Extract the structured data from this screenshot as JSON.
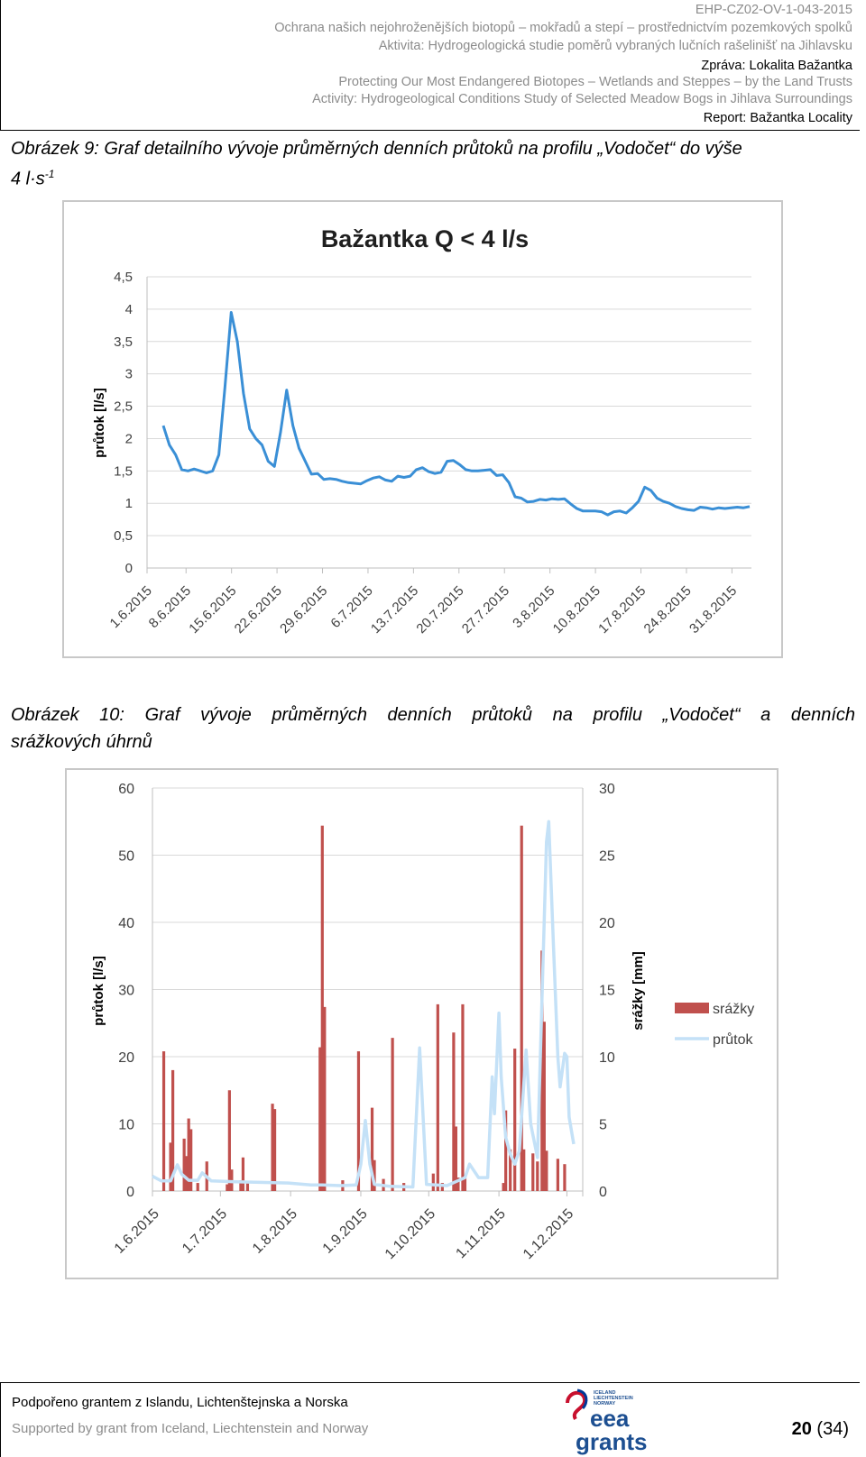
{
  "header": {
    "code": "EHP-CZ02-OV-1-043-2015",
    "line1_cz": "Ochrana našich nejohroženějších biotopů – mokřadů a stepí – prostřednictvím pozemkových spolků",
    "line2_cz": "Aktivita: Hydrogeologická studie poměrů vybraných lučních rašelinišť na Jihlavsku",
    "report_cz": "Zpráva: Lokalita Bažantka",
    "line1_en": "Protecting Our Most Endangered Biotopes – Wetlands and Steppes – by the Land Trusts",
    "line2_en": "Activity: Hydrogeological Conditions Study of Selected Meadow Bogs in Jihlava Surroundings",
    "report_en": "Report: Bažantka Locality"
  },
  "figure9": {
    "caption_main": "Obrázek 9: Graf detailního vývoje průměrných denních průtoků na profilu „Vodočet“ do výše",
    "caption_unit": "4 l·s",
    "caption_sup": "-1"
  },
  "figure10": {
    "caption_line1": "Obrázek 10: Graf vývoje průměrných denních průtoků na profilu „Vodočet“ a denních",
    "caption_line2": "srážkových úhrnů"
  },
  "colors": {
    "flow_line": "#3a8fd6",
    "flow_light": "#c4e1f7",
    "rain_bar": "#c0504d",
    "grid": "#d9d9d9"
  },
  "chart_data": [
    {
      "type": "line",
      "title": "Bažantka Q < 4 l/s",
      "xlabel": "",
      "ylabel": "průtok [l/s]",
      "ylim": [
        0,
        4.5
      ],
      "yticks": [
        "0",
        "0,5",
        "1",
        "1,5",
        "2",
        "2,5",
        "3",
        "3,5",
        "4",
        "4,5"
      ],
      "xticks": [
        "1.6.2015",
        "8.6.2015",
        "15.6.2015",
        "22.6.2015",
        "29.6.2015",
        "6.7.2015",
        "13.7.2015",
        "20.7.2015",
        "27.7.2015",
        "3.8.2015",
        "10.8.2015",
        "17.8.2015",
        "24.8.2015",
        "31.8.2015"
      ],
      "x_start": "2.6.2015",
      "series": [
        {
          "values": [
            2.2,
            1.9,
            1.75,
            1.52,
            1.5,
            1.53,
            1.5,
            1.47,
            1.5,
            1.75,
            2.8,
            3.95,
            3.5,
            2.7,
            2.15,
            2.0,
            1.9,
            1.65,
            1.57,
            2.1,
            2.75,
            2.2,
            1.85,
            1.65,
            1.45,
            1.46,
            1.37,
            1.38,
            1.37,
            1.34,
            1.32,
            1.31,
            1.3,
            1.35,
            1.39,
            1.41,
            1.36,
            1.34,
            1.42,
            1.4,
            1.42,
            1.52,
            1.55,
            1.49,
            1.46,
            1.48,
            1.65,
            1.66,
            1.6,
            1.52,
            1.5,
            1.5,
            1.51,
            1.52,
            1.43,
            1.44,
            1.32,
            1.1,
            1.08,
            1.02,
            1.03,
            1.06,
            1.05,
            1.07,
            1.06,
            1.07,
            0.99,
            0.92,
            0.88,
            0.88,
            0.88,
            0.87,
            0.82,
            0.87,
            0.88,
            0.85,
            0.93,
            1.03,
            1.25,
            1.2,
            1.08,
            1.03,
            1.0,
            0.95,
            0.92,
            0.9,
            0.89,
            0.94,
            0.93,
            0.91,
            0.93,
            0.92,
            0.93,
            0.94,
            0.93,
            0.95
          ]
        }
      ],
      "grid": true
    },
    {
      "type": "bar+line",
      "title": "",
      "ylabel_left": "průtok [l/s]",
      "ylabel_right": "srážky [mm]",
      "ylim_left": [
        0,
        60
      ],
      "ylim_right": [
        0,
        30
      ],
      "yticks_left": [
        "0",
        "10",
        "20",
        "30",
        "40",
        "50",
        "60"
      ],
      "yticks_right": [
        "0",
        "5",
        "10",
        "15",
        "20",
        "25",
        "30"
      ],
      "xticks": [
        "1.6.2015",
        "1.7.2015",
        "1.8.2015",
        "1.9.2015",
        "1.10.2015",
        "1.11.2015",
        "1.12.2015"
      ],
      "legend": [
        "srážky",
        "průtok"
      ],
      "legend_position": "right",
      "grid": true,
      "series": [
        {
          "name": "srážky",
          "axis": "right",
          "values": [
            [
              5,
              10.4
            ],
            [
              8,
              3.6
            ],
            [
              9,
              9.0
            ],
            [
              14,
              3.9
            ],
            [
              15,
              2.6
            ],
            [
              16,
              5.4
            ],
            [
              17,
              4.6
            ],
            [
              20,
              0.6
            ],
            [
              24,
              2.2
            ],
            [
              33,
              0.5
            ],
            [
              34,
              7.5
            ],
            [
              35,
              1.6
            ],
            [
              39,
              0.8
            ],
            [
              40,
              2.5
            ],
            [
              42,
              0.7
            ],
            [
              53,
              6.5
            ],
            [
              54,
              6.1
            ],
            [
              74,
              10.7
            ],
            [
              75,
              27.2
            ],
            [
              76,
              13.7
            ],
            [
              84,
              0.8
            ],
            [
              91,
              10.4
            ],
            [
              97,
              6.2
            ],
            [
              98,
              2.3
            ],
            [
              102,
              0.9
            ],
            [
              106,
              11.4
            ],
            [
              111,
              0.6
            ],
            [
              124,
              1.3
            ],
            [
              126,
              13.9
            ],
            [
              128,
              0.6
            ],
            [
              133,
              11.8
            ],
            [
              134,
              4.8
            ],
            [
              135,
              1.0
            ],
            [
              137,
              13.9
            ],
            [
              138,
              1.2
            ],
            [
              155,
              0.6
            ],
            [
              156,
              6.0
            ],
            [
              158,
              3.1
            ],
            [
              160,
              10.6
            ],
            [
              163,
              27.2
            ],
            [
              164,
              3.1
            ],
            [
              168,
              2.8
            ],
            [
              170,
              2.2
            ],
            [
              172,
              17.9
            ],
            [
              173,
              12.6
            ],
            [
              174,
              3.0
            ],
            [
              179,
              2.4
            ],
            [
              182,
              2.0
            ]
          ]
        },
        {
          "name": "průtok",
          "axis": "left",
          "values": [
            [
              0,
              2.2
            ],
            [
              4,
              1.5
            ],
            [
              8,
              1.5
            ],
            [
              11,
              3.9
            ],
            [
              13,
              2.5
            ],
            [
              16,
              1.6
            ],
            [
              20,
              1.6
            ],
            [
              22,
              2.7
            ],
            [
              26,
              1.5
            ],
            [
              35,
              1.4
            ],
            [
              60,
              1.2
            ],
            [
              70,
              0.9
            ],
            [
              75,
              0.9
            ],
            [
              83,
              0.8
            ],
            [
              90,
              0.9
            ],
            [
              92,
              4.0
            ],
            [
              94,
              10.5
            ],
            [
              96,
              4.0
            ],
            [
              98,
              1.0
            ],
            [
              105,
              0.7
            ],
            [
              115,
              0.6
            ],
            [
              118,
              21.3
            ],
            [
              121,
              1.0
            ],
            [
              130,
              0.8
            ],
            [
              138,
              2.0
            ],
            [
              140,
              4.0
            ],
            [
              144,
              2.0
            ],
            [
              148,
              2.0
            ],
            [
              150,
              17.0
            ],
            [
              151,
              11.5
            ],
            [
              153,
              26.5
            ],
            [
              154,
              17.0
            ],
            [
              156,
              8.0
            ],
            [
              158,
              5.5
            ],
            [
              160,
              4.0
            ],
            [
              162,
              6.0
            ],
            [
              165,
              21.0
            ],
            [
              167,
              10.0
            ],
            [
              170,
              5.0
            ],
            [
              174,
              52.0
            ],
            [
              175,
              55.0
            ],
            [
              177,
              37.0
            ],
            [
              179,
              20.0
            ],
            [
              180,
              15.5
            ],
            [
              182,
              20.5
            ],
            [
              183,
              20.0
            ],
            [
              184,
              11.0
            ],
            [
              186,
              7.0
            ]
          ]
        }
      ]
    }
  ],
  "footer": {
    "line1": "Podpořeno grantem z Islandu, Lichtenštejnska a Norska",
    "line2": "Supported by grant from Iceland, Liechtenstein and Norway",
    "page": "20",
    "total": "(34)",
    "logo_word1": "eea",
    "logo_word2": "grants",
    "logo_countries": [
      "ICELAND",
      "LIECHTENSTEIN",
      "NORWAY"
    ]
  }
}
